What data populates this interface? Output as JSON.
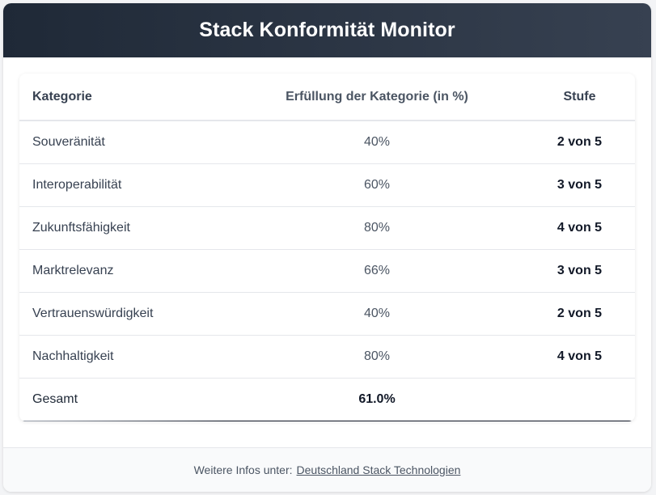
{
  "header": {
    "title": "Stack Konformität Monitor"
  },
  "table": {
    "columns": [
      "Kategorie",
      "Erfüllung der Kategorie (in %)",
      "Stufe"
    ],
    "rows": [
      {
        "category": "Souveränität",
        "percent": "40%",
        "level": "2 von 5"
      },
      {
        "category": "Interoperabilität",
        "percent": "60%",
        "level": "3 von 5"
      },
      {
        "category": "Zukunftsfähigkeit",
        "percent": "80%",
        "level": "4 von 5"
      },
      {
        "category": "Marktrelevanz",
        "percent": "66%",
        "level": "3 von 5"
      },
      {
        "category": "Vertrauenswürdigkeit",
        "percent": "40%",
        "level": "2 von 5"
      },
      {
        "category": "Nachhaltigkeit",
        "percent": "80%",
        "level": "4 von 5"
      }
    ],
    "total": {
      "label": "Gesamt",
      "percent": "61.0%",
      "level": ""
    }
  },
  "footer": {
    "prefix": "Weitere Infos unter:",
    "link_label": "Deutschland Stack Technologien"
  },
  "colors": {
    "header_dark": "#1f2937",
    "header_light": "#374151",
    "text": "#374151",
    "border": "#e5e7eb"
  }
}
